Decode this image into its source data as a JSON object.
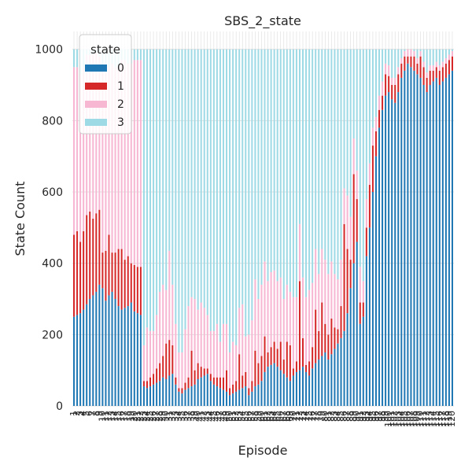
{
  "chart_data": {
    "type": "bar",
    "stacked": true,
    "title": "SBS_2_state",
    "xlabel": "Episode",
    "ylabel": "State Count",
    "ylim": [
      0,
      1050
    ],
    "yticks": [
      0,
      200,
      400,
      600,
      800,
      1000
    ],
    "grid": true,
    "legend": {
      "title": "state",
      "placement": "top-left"
    },
    "categories": [
      "1",
      "2",
      "3",
      "4",
      "5",
      "6",
      "7",
      "8",
      "9",
      "10",
      "11",
      "12",
      "13",
      "14",
      "15",
      "16",
      "17",
      "18",
      "19",
      "20",
      "21",
      "22",
      "23",
      "24",
      "25",
      "26",
      "27",
      "28",
      "29",
      "30",
      "31",
      "32",
      "33",
      "34",
      "35",
      "36",
      "37",
      "38",
      "39",
      "40",
      "41",
      "42",
      "43",
      "44",
      "45",
      "46",
      "47",
      "48",
      "49",
      "50",
      "51",
      "52",
      "53",
      "54",
      "55",
      "56",
      "57",
      "58",
      "59",
      "60",
      "61",
      "62",
      "63",
      "64",
      "65",
      "66",
      "67",
      "68",
      "69",
      "70",
      "71",
      "72",
      "73",
      "74",
      "75",
      "76",
      "77",
      "78",
      "79",
      "80",
      "81",
      "82",
      "83",
      "84",
      "85",
      "86",
      "87",
      "88",
      "89",
      "90",
      "91",
      "92",
      "93",
      "94",
      "95",
      "96",
      "97",
      "98",
      "99",
      "100",
      "101",
      "102",
      "103",
      "104",
      "105",
      "106",
      "107",
      "108",
      "109",
      "110",
      "111",
      "112",
      "113",
      "114",
      "115",
      "116",
      "117",
      "118",
      "119",
      "120"
    ],
    "series": [
      {
        "name": "0",
        "color": "#1f77b4",
        "values": [
          250,
          255,
          260,
          270,
          285,
          300,
          310,
          320,
          340,
          330,
          295,
          310,
          320,
          300,
          280,
          270,
          275,
          280,
          290,
          265,
          260,
          255,
          55,
          50,
          55,
          60,
          65,
          70,
          80,
          75,
          85,
          90,
          60,
          40,
          35,
          45,
          50,
          55,
          60,
          75,
          80,
          85,
          90,
          70,
          60,
          55,
          50,
          45,
          40,
          30,
          35,
          40,
          45,
          50,
          55,
          30,
          40,
          55,
          60,
          70,
          95,
          110,
          115,
          120,
          110,
          100,
          90,
          80,
          70,
          85,
          95,
          100,
          110,
          95,
          85,
          105,
          120,
          130,
          140,
          150,
          130,
          145,
          160,
          175,
          190,
          210,
          260,
          330,
          400,
          460,
          230,
          250,
          420,
          500,
          600,
          700,
          780,
          830,
          870,
          880,
          860,
          850,
          880,
          920,
          940,
          960,
          950,
          940,
          930,
          920,
          900,
          880,
          900,
          910,
          920,
          900,
          910,
          920,
          930,
          940
        ]
      },
      {
        "name": "1",
        "color": "#d62728",
        "values": [
          230,
          235,
          200,
          220,
          250,
          245,
          215,
          220,
          210,
          100,
          140,
          170,
          110,
          130,
          160,
          170,
          135,
          140,
          110,
          130,
          130,
          135,
          15,
          20,
          25,
          30,
          40,
          50,
          60,
          100,
          100,
          80,
          20,
          10,
          15,
          20,
          30,
          100,
          40,
          45,
          30,
          20,
          15,
          20,
          20,
          25,
          30,
          35,
          60,
          20,
          25,
          30,
          100,
          35,
          40,
          20,
          30,
          100,
          60,
          70,
          100,
          40,
          50,
          60,
          50,
          80,
          40,
          100,
          100,
          20,
          30,
          250,
          80,
          20,
          40,
          60,
          150,
          80,
          150,
          80,
          70,
          100,
          60,
          40,
          90,
          300,
          180,
          80,
          250,
          120,
          60,
          40,
          80,
          120,
          130,
          70,
          50,
          40,
          60,
          45,
          40,
          50,
          50,
          40,
          40,
          20,
          30,
          40,
          30,
          60,
          50,
          40,
          40,
          30,
          30,
          40,
          40,
          40,
          40,
          40
        ]
      },
      {
        "name": "2",
        "color": "#f7b6d2",
        "values": [
          470,
          460,
          470,
          460,
          450,
          440,
          460,
          450,
          430,
          510,
          500,
          470,
          530,
          520,
          510,
          530,
          560,
          540,
          560,
          575,
          580,
          580,
          100,
          150,
          130,
          120,
          150,
          200,
          200,
          150,
          250,
          170,
          150,
          100,
          100,
          150,
          200,
          150,
          200,
          150,
          180,
          170,
          150,
          120,
          130,
          150,
          100,
          150,
          130,
          100,
          120,
          100,
          130,
          200,
          100,
          150,
          170,
          200,
          180,
          200,
          210,
          200,
          210,
          200,
          190,
          180,
          170,
          160,
          150,
          200,
          180,
          160,
          170,
          190,
          200,
          180,
          170,
          160,
          150,
          180,
          170,
          160,
          150,
          140,
          130,
          100,
          150,
          120,
          100,
          80,
          100,
          60,
          80,
          60,
          50,
          40,
          40,
          40,
          30,
          30,
          20,
          20,
          20,
          15,
          15,
          20,
          20,
          15,
          15,
          15,
          15,
          15,
          15,
          15,
          15,
          15,
          15,
          15,
          15,
          15
        ]
      },
      {
        "name": "3",
        "color": "#9edae5",
        "values": [
          50,
          50,
          70,
          50,
          15,
          15,
          15,
          10,
          20,
          60,
          65,
          50,
          40,
          50,
          50,
          30,
          30,
          40,
          40,
          30,
          30,
          30,
          830,
          780,
          790,
          790,
          745,
          680,
          660,
          675,
          565,
          660,
          770,
          850,
          850,
          785,
          720,
          695,
          700,
          730,
          710,
          725,
          745,
          790,
          790,
          770,
          820,
          770,
          770,
          850,
          820,
          830,
          725,
          715,
          805,
          800,
          760,
          645,
          700,
          660,
          595,
          650,
          625,
          620,
          650,
          640,
          700,
          660,
          680,
          695,
          695,
          490,
          640,
          695,
          675,
          655,
          560,
          630,
          560,
          590,
          630,
          595,
          630,
          645,
          590,
          390,
          410,
          470,
          250,
          340,
          610,
          650,
          420,
          320,
          220,
          190,
          130,
          90,
          40,
          45,
          80,
          80,
          50,
          25,
          5,
          0,
          0,
          5,
          25,
          5,
          35,
          65,
          45,
          45,
          35,
          45,
          35,
          25,
          15,
          5
        ]
      }
    ]
  }
}
